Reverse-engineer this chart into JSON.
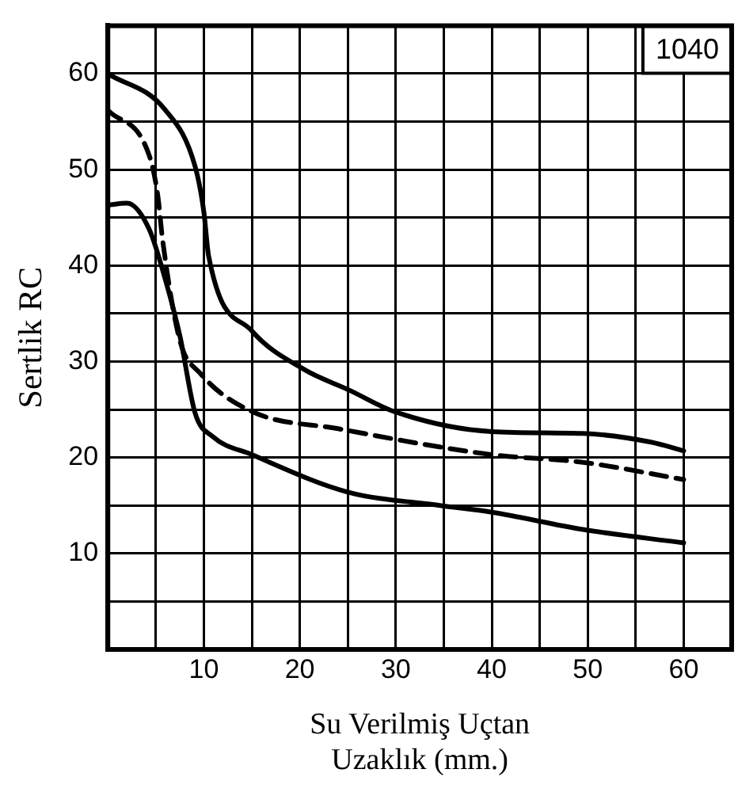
{
  "chart_data": {
    "type": "line",
    "xlabel": "Su Verilmiş Uçtan\nUzaklık (mm.)",
    "ylabel": "Sertlik RC",
    "annotations": [
      "1040"
    ],
    "xlim": [
      0,
      65
    ],
    "ylim": [
      0,
      65
    ],
    "xticks": [
      {
        "value": 5,
        "label": null
      },
      10,
      {
        "value": 15,
        "label": null
      },
      20,
      {
        "value": 25,
        "label": null
      },
      30,
      {
        "value": 35,
        "label": null
      },
      40,
      {
        "value": 45,
        "label": null
      },
      50,
      {
        "value": 55,
        "label": null
      },
      60
    ],
    "yticks": [
      {
        "value": 5,
        "label": null
      },
      10,
      {
        "value": 15,
        "label": null
      },
      20,
      {
        "value": 25,
        "label": null
      },
      30,
      {
        "value": 35,
        "label": null
      },
      40,
      {
        "value": 45,
        "label": null
      },
      50,
      {
        "value": 55,
        "label": null
      },
      60
    ],
    "grid": true,
    "legend": false,
    "marker": "none",
    "series": [
      {
        "color": "#000000",
        "line_style": "solid",
        "x": [
          0,
          6,
          9.1,
          10,
          10.5,
          15,
          20.4,
          25.2,
          29.8,
          40,
          49.5,
          56.6,
          60
        ],
        "values": [
          60,
          56.2,
          50.3,
          45.6,
          41,
          33.2,
          29.2,
          27,
          24.8,
          22.7,
          22.5,
          21.6,
          20.7
        ]
      },
      {
        "color": "#000000",
        "line_style": "dashed",
        "x": [
          0,
          4.3,
          5.2,
          5.7,
          7.5,
          9.6,
          15,
          24,
          40,
          49.5,
          60
        ],
        "values": [
          56.2,
          51.5,
          47.3,
          42.7,
          32.2,
          28.8,
          24.8,
          23,
          20.3,
          19.5,
          17.7
        ]
      },
      {
        "color": "#000000",
        "line_style": "solid",
        "x": [
          0,
          2,
          4.3,
          6,
          7.5,
          9.1,
          10.9,
          15,
          25,
          34.6,
          40,
          49.5,
          60
        ],
        "values": [
          46.3,
          46.5,
          43.8,
          38.5,
          32.7,
          24.6,
          22.2,
          20.3,
          16.4,
          15,
          14.3,
          12.5,
          11.1
        ]
      }
    ]
  }
}
